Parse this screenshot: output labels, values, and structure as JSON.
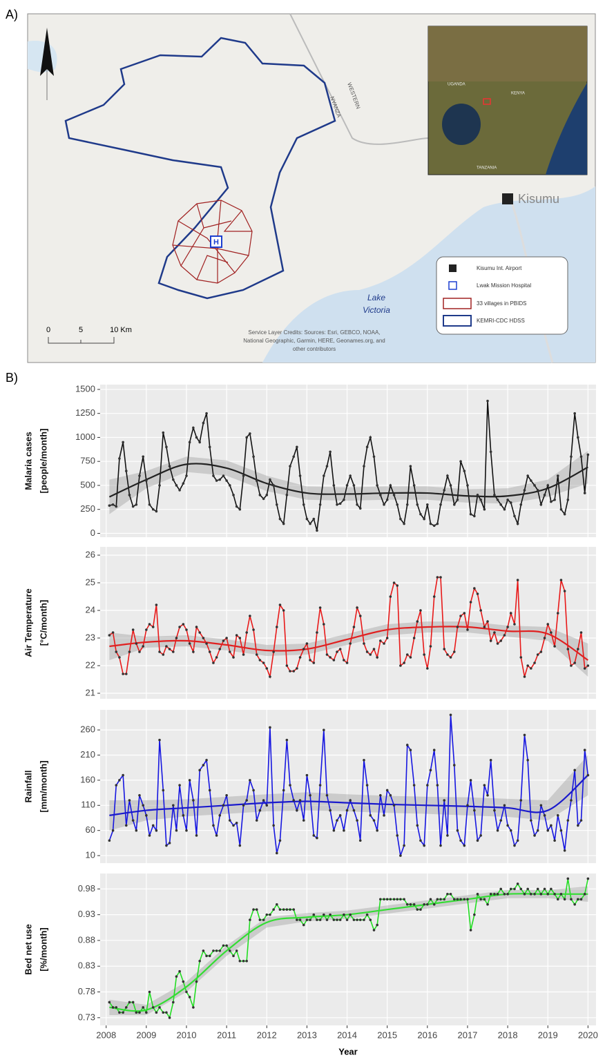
{
  "map": {
    "panel_label": "A)",
    "city": "Kisumu",
    "lake": [
      "Lake",
      "Victoria"
    ],
    "roads": [
      "NYANZA",
      "WESTERN"
    ],
    "inset_labels": [
      "UGANDA",
      "KENYA",
      "TANZANIA"
    ],
    "scale": [
      "0",
      "5",
      "10 Km"
    ],
    "credits": [
      "Service Layer Credits: Sources: Esri, GEBCO, NOAA,",
      "National Geographic, Garmin, HERE, Geonames.org, and",
      "other contributors"
    ],
    "legend": [
      "Kisumu Int. Airport",
      "Lwak Mission Hospital",
      "33 villages in PBIDS",
      "KEMRI-CDC HDSS"
    ]
  },
  "chart_data": {
    "type": "line",
    "panel_label": "B)",
    "xlabel": "Year",
    "xlim": [
      2007.85,
      2020.2
    ],
    "xticks": [
      2008,
      2009,
      2010,
      2011,
      2012,
      2013,
      2014,
      2015,
      2016,
      2017,
      2018,
      2019,
      2020
    ],
    "x": [
      2008.08,
      2008.17,
      2008.25,
      2008.33,
      2008.42,
      2008.5,
      2008.58,
      2008.67,
      2008.75,
      2008.83,
      2008.92,
      2009,
      2009.08,
      2009.17,
      2009.25,
      2009.33,
      2009.42,
      2009.5,
      2009.58,
      2009.67,
      2009.75,
      2009.83,
      2009.92,
      2010,
      2010.08,
      2010.17,
      2010.25,
      2010.33,
      2010.42,
      2010.5,
      2010.58,
      2010.67,
      2010.75,
      2010.83,
      2010.92,
      2011,
      2011.08,
      2011.17,
      2011.25,
      2011.33,
      2011.42,
      2011.5,
      2011.58,
      2011.67,
      2011.75,
      2011.83,
      2011.92,
      2012,
      2012.08,
      2012.17,
      2012.25,
      2012.33,
      2012.42,
      2012.5,
      2012.58,
      2012.67,
      2012.75,
      2012.83,
      2012.92,
      2013,
      2013.08,
      2013.17,
      2013.25,
      2013.33,
      2013.42,
      2013.5,
      2013.58,
      2013.67,
      2013.75,
      2013.83,
      2013.92,
      2014,
      2014.08,
      2014.17,
      2014.25,
      2014.33,
      2014.42,
      2014.5,
      2014.58,
      2014.67,
      2014.75,
      2014.83,
      2014.92,
      2015,
      2015.08,
      2015.17,
      2015.25,
      2015.33,
      2015.42,
      2015.5,
      2015.58,
      2015.67,
      2015.75,
      2015.83,
      2015.92,
      2016,
      2016.08,
      2016.17,
      2016.25,
      2016.33,
      2016.42,
      2016.5,
      2016.58,
      2016.67,
      2016.75,
      2016.83,
      2016.92,
      2017,
      2017.08,
      2017.17,
      2017.25,
      2017.33,
      2017.42,
      2017.5,
      2017.58,
      2017.67,
      2017.75,
      2017.83,
      2017.92,
      2018,
      2018.08,
      2018.17,
      2018.25,
      2018.33,
      2018.42,
      2018.5,
      2018.58,
      2018.67,
      2018.75,
      2018.83,
      2018.92,
      2019,
      2019.08,
      2019.17,
      2019.25,
      2019.33,
      2019.42,
      2019.5,
      2019.58,
      2019.67,
      2019.75,
      2019.83,
      2019.92,
      2020
    ],
    "trend_x": [
      2008.08,
      2009,
      2010,
      2011,
      2012,
      2013,
      2014,
      2015,
      2016,
      2017,
      2018,
      2019,
      2020
    ],
    "grid": true,
    "panels": [
      {
        "ylabel": [
          "Malaria cases",
          "[people/month]"
        ],
        "color": "#111111",
        "trend_color": "#222222",
        "ylim": [
          -40,
          1550
        ],
        "yticks": [
          0,
          250,
          500,
          750,
          1000,
          1250,
          1500
        ],
        "values": [
          290,
          300,
          280,
          780,
          950,
          650,
          400,
          280,
          300,
          600,
          800,
          550,
          300,
          250,
          230,
          500,
          1050,
          900,
          700,
          560,
          500,
          450,
          520,
          600,
          950,
          1100,
          1000,
          950,
          1150,
          1250,
          900,
          600,
          550,
          560,
          600,
          550,
          500,
          400,
          280,
          250,
          600,
          1000,
          1040,
          800,
          550,
          400,
          360,
          400,
          560,
          500,
          300,
          150,
          100,
          400,
          700,
          800,
          900,
          600,
          300,
          150,
          100,
          150,
          30,
          300,
          600,
          700,
          850,
          500,
          300,
          310,
          350,
          500,
          600,
          500,
          300,
          260,
          700,
          900,
          1000,
          800,
          500,
          400,
          300,
          350,
          500,
          400,
          300,
          150,
          100,
          300,
          700,
          500,
          300,
          200,
          150,
          300,
          100,
          80,
          100,
          300,
          450,
          600,
          500,
          300,
          350,
          750,
          650,
          500,
          200,
          180,
          400,
          350,
          250,
          1380,
          850,
          400,
          350,
          300,
          250,
          350,
          320,
          180,
          100,
          300,
          450,
          600,
          550,
          500,
          450,
          300,
          400,
          500,
          330,
          350,
          600,
          250,
          200,
          350,
          800,
          1250,
          1000,
          800,
          420,
          820
        ],
        "trend": [
          380,
          560,
          720,
          680,
          520,
          420,
          410,
          420,
          420,
          390,
          390,
          470,
          690
        ],
        "ci_low": [
          200,
          470,
          640,
          600,
          440,
          350,
          340,
          350,
          350,
          320,
          310,
          380,
          520
        ],
        "ci_high": [
          560,
          650,
          800,
          760,
          600,
          490,
          480,
          490,
          490,
          460,
          470,
          560,
          860
        ]
      },
      {
        "ylabel": [
          "Air Temperature",
          "[°C/month]"
        ],
        "color": "#e81818",
        "trend_color": "#e02020",
        "ylim": [
          20.8,
          26.3
        ],
        "yticks": [
          21,
          22,
          23,
          24,
          25,
          26
        ],
        "values": [
          23.1,
          23.2,
          22.5,
          22.3,
          21.7,
          21.7,
          22.5,
          23.3,
          22.8,
          22.5,
          22.7,
          23.3,
          23.5,
          23.4,
          24.2,
          22.5,
          22.4,
          22.7,
          22.6,
          22.5,
          23.0,
          23.4,
          23.5,
          23.3,
          22.8,
          22.5,
          23.4,
          23.2,
          23.0,
          22.8,
          22.5,
          22.1,
          22.3,
          22.6,
          22.9,
          23.0,
          22.5,
          22.3,
          23.1,
          23.0,
          22.4,
          23.2,
          23.8,
          23.3,
          22.4,
          22.2,
          22.1,
          21.9,
          21.6,
          22.5,
          23.4,
          24.2,
          24.0,
          22.0,
          21.8,
          21.8,
          21.9,
          22.3,
          22.6,
          22.8,
          22.2,
          22.1,
          23.2,
          24.1,
          23.5,
          22.4,
          22.3,
          22.2,
          22.5,
          22.6,
          22.2,
          22.1,
          22.8,
          23.4,
          24.1,
          23.8,
          22.8,
          22.5,
          22.4,
          22.6,
          22.3,
          22.9,
          22.8,
          23.0,
          24.5,
          25.0,
          24.9,
          22.0,
          22.1,
          22.4,
          22.3,
          23.0,
          23.6,
          24.0,
          22.4,
          21.9,
          22.7,
          24.5,
          25.2,
          25.2,
          22.6,
          22.4,
          22.3,
          22.5,
          23.4,
          23.8,
          23.9,
          23.3,
          24.3,
          24.8,
          24.6,
          24.0,
          23.4,
          23.6,
          22.9,
          23.2,
          22.8,
          22.9,
          23.1,
          23.4,
          23.9,
          23.5,
          25.1,
          22.3,
          21.6,
          22.0,
          21.9,
          22.1,
          22.4,
          22.5,
          23.0,
          23.5,
          23.2,
          22.7,
          23.9,
          25.1,
          24.7,
          22.6,
          22.0,
          22.1,
          22.6,
          23.2,
          21.9,
          22.0
        ],
        "trend": [
          22.7,
          22.85,
          22.9,
          22.75,
          22.55,
          22.6,
          22.95,
          23.3,
          23.4,
          23.4,
          23.25,
          23.15,
          22.2
        ],
        "ci_low": [
          22.2,
          22.65,
          22.7,
          22.55,
          22.35,
          22.4,
          22.75,
          23.1,
          23.2,
          23.2,
          23.05,
          22.9,
          21.6
        ],
        "ci_high": [
          23.2,
          23.05,
          23.1,
          22.95,
          22.75,
          22.8,
          23.15,
          23.5,
          23.6,
          23.6,
          23.45,
          23.4,
          22.8
        ]
      },
      {
        "ylabel": [
          "Rainfall",
          "[mm/month]"
        ],
        "color": "#1515e0",
        "trend_color": "#1a1acc",
        "ylim": [
          -5,
          300
        ],
        "yticks": [
          10,
          60,
          110,
          160,
          210,
          260
        ],
        "values": [
          40,
          60,
          150,
          160,
          170,
          70,
          120,
          80,
          60,
          130,
          110,
          90,
          50,
          70,
          60,
          240,
          140,
          30,
          35,
          110,
          60,
          150,
          90,
          60,
          160,
          120,
          50,
          180,
          190,
          200,
          140,
          70,
          50,
          90,
          110,
          130,
          80,
          70,
          75,
          30,
          110,
          120,
          160,
          140,
          80,
          100,
          120,
          110,
          265,
          70,
          15,
          40,
          140,
          240,
          150,
          120,
          100,
          120,
          80,
          170,
          130,
          50,
          45,
          150,
          260,
          130,
          100,
          60,
          80,
          90,
          60,
          100,
          120,
          100,
          80,
          40,
          200,
          150,
          90,
          80,
          60,
          130,
          90,
          140,
          130,
          110,
          50,
          10,
          30,
          230,
          220,
          150,
          70,
          40,
          30,
          150,
          180,
          220,
          150,
          30,
          120,
          50,
          290,
          190,
          60,
          40,
          30,
          110,
          160,
          100,
          40,
          50,
          150,
          130,
          200,
          100,
          60,
          80,
          110,
          70,
          60,
          30,
          40,
          120,
          250,
          200,
          80,
          50,
          60,
          110,
          90,
          60,
          70,
          40,
          90,
          60,
          20,
          80,
          120,
          180,
          70,
          80,
          220,
          170
        ],
        "trend": [
          90,
          100,
          105,
          110,
          115,
          118,
          115,
          112,
          110,
          108,
          105,
          100,
          170
        ],
        "ci_low": [
          60,
          80,
          88,
          93,
          98,
          100,
          98,
          95,
          93,
          90,
          87,
          80,
          130
        ],
        "ci_high": [
          120,
          120,
          122,
          127,
          132,
          136,
          132,
          129,
          127,
          126,
          123,
          120,
          210
        ]
      },
      {
        "ylabel": [
          "Bed net use",
          "[%/month]"
        ],
        "color": "#22dd22",
        "trend_color": "#33dd33",
        "ylim": [
          0.715,
          1.01
        ],
        "yticks": [
          0.73,
          0.78,
          0.83,
          0.88,
          0.93,
          0.98
        ],
        "values": [
          0.76,
          0.75,
          0.75,
          0.74,
          0.74,
          0.75,
          0.76,
          0.76,
          0.74,
          0.74,
          0.75,
          0.74,
          0.78,
          0.75,
          0.74,
          0.75,
          0.74,
          0.74,
          0.73,
          0.76,
          0.81,
          0.82,
          0.8,
          0.78,
          0.77,
          0.75,
          0.8,
          0.84,
          0.86,
          0.85,
          0.85,
          0.86,
          0.86,
          0.86,
          0.87,
          0.87,
          0.86,
          0.85,
          0.86,
          0.84,
          0.84,
          0.84,
          0.92,
          0.94,
          0.94,
          0.92,
          0.92,
          0.93,
          0.93,
          0.94,
          0.95,
          0.94,
          0.94,
          0.94,
          0.94,
          0.94,
          0.92,
          0.92,
          0.91,
          0.92,
          0.92,
          0.93,
          0.92,
          0.92,
          0.93,
          0.92,
          0.93,
          0.92,
          0.92,
          0.92,
          0.93,
          0.92,
          0.93,
          0.92,
          0.92,
          0.92,
          0.92,
          0.93,
          0.92,
          0.9,
          0.91,
          0.96,
          0.96,
          0.96,
          0.96,
          0.96,
          0.96,
          0.96,
          0.96,
          0.95,
          0.95,
          0.95,
          0.94,
          0.94,
          0.95,
          0.95,
          0.96,
          0.95,
          0.96,
          0.96,
          0.96,
          0.97,
          0.97,
          0.96,
          0.96,
          0.96,
          0.96,
          0.96,
          0.9,
          0.93,
          0.97,
          0.96,
          0.96,
          0.95,
          0.97,
          0.97,
          0.97,
          0.98,
          0.97,
          0.97,
          0.98,
          0.98,
          0.99,
          0.98,
          0.97,
          0.98,
          0.97,
          0.97,
          0.98,
          0.97,
          0.98,
          0.97,
          0.98,
          0.97,
          0.96,
          0.97,
          0.96,
          1.0,
          0.96,
          0.95,
          0.96,
          0.96,
          0.97,
          1.0
        ],
        "trend": [
          0.75,
          0.745,
          0.79,
          0.86,
          0.915,
          0.925,
          0.93,
          0.94,
          0.95,
          0.96,
          0.97,
          0.97,
          0.97
        ],
        "ci_low": [
          0.735,
          0.735,
          0.78,
          0.85,
          0.905,
          0.917,
          0.922,
          0.932,
          0.942,
          0.952,
          0.962,
          0.962,
          0.955
        ],
        "ci_high": [
          0.765,
          0.755,
          0.8,
          0.87,
          0.925,
          0.933,
          0.938,
          0.948,
          0.958,
          0.968,
          0.978,
          0.978,
          0.985
        ]
      }
    ]
  }
}
